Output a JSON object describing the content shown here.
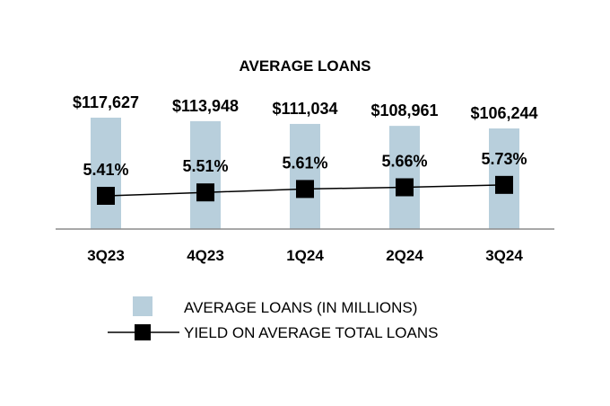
{
  "chart_data": {
    "type": "bar",
    "title": "AVERAGE LOANS",
    "categories": [
      "3Q23",
      "4Q23",
      "1Q24",
      "2Q24",
      "3Q24"
    ],
    "series": [
      {
        "name": "AVERAGE LOANS (IN MILLIONS)",
        "type": "bar",
        "values": [
          117627,
          113948,
          111034,
          108961,
          106244
        ],
        "labels": [
          "$117,627",
          "$113,948",
          "$111,034",
          "$108,961",
          "$106,244"
        ],
        "color": "#b8cfdc"
      },
      {
        "name": "YIELD ON AVERAGE TOTAL LOANS",
        "type": "line",
        "marker": "square",
        "values": [
          5.41,
          5.51,
          5.61,
          5.66,
          5.73
        ],
        "labels": [
          "5.41%",
          "5.51%",
          "5.61%",
          "5.66%",
          "5.73%"
        ],
        "color": "#000000"
      }
    ],
    "xlabel": "",
    "ylabel": "",
    "grid": false,
    "legend": "bottom"
  }
}
